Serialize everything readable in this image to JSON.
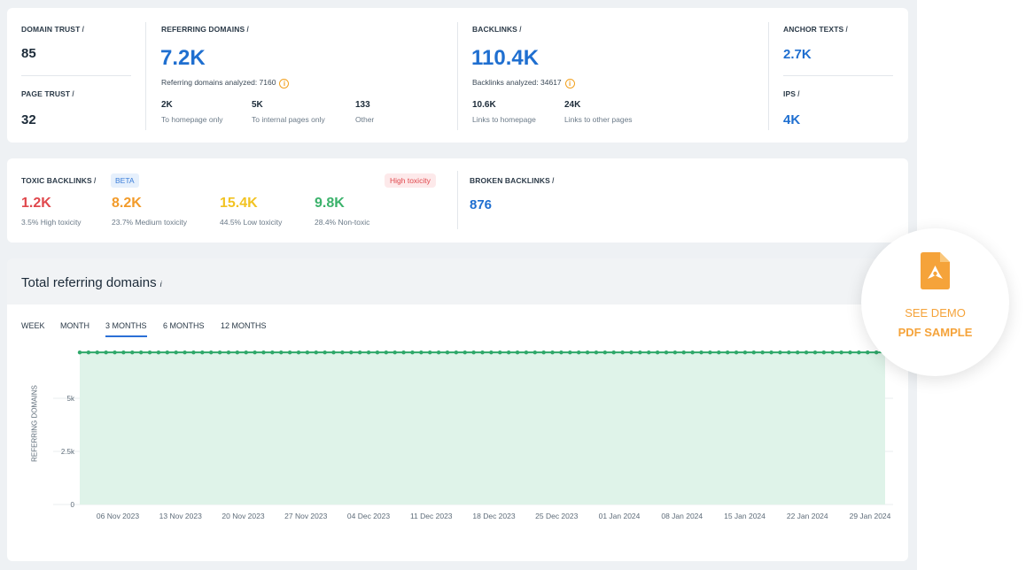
{
  "metrics": {
    "domain_trust": {
      "label": "DOMAIN TRUST",
      "value": "85"
    },
    "page_trust": {
      "label": "PAGE TRUST",
      "value": "32"
    },
    "referring_domains": {
      "label": "REFERRING DOMAINS",
      "value": "7.2K",
      "analyzed": "Referring domains analyzed: 7160",
      "breakdown": [
        {
          "value": "2K",
          "label": "To homepage only"
        },
        {
          "value": "5K",
          "label": "To internal pages only"
        },
        {
          "value": "133",
          "label": "Other"
        }
      ]
    },
    "backlinks": {
      "label": "BACKLINKS",
      "value": "110.4K",
      "analyzed": "Backlinks analyzed: 34617",
      "breakdown": [
        {
          "value": "10.6K",
          "label": "Links to homepage"
        },
        {
          "value": "24K",
          "label": "Links to other pages"
        }
      ]
    },
    "anchor_texts": {
      "label": "ANCHOR TEXTS",
      "value": "2.7K"
    },
    "ips": {
      "label": "IPS",
      "value": "4K"
    },
    "info_mark": "i"
  },
  "toxic": {
    "label": "TOXIC BACKLINKS",
    "beta": "BETA",
    "high_badge": "High toxicity",
    "items": [
      {
        "value": "1.2K",
        "label": "3.5% High toxicity",
        "color": "#e0484d"
      },
      {
        "value": "8.2K",
        "label": "23.7% Medium toxicity",
        "color": "#f29b2a"
      },
      {
        "value": "15.4K",
        "label": "44.5% Low toxicity",
        "color": "#f2c322"
      },
      {
        "value": "9.8K",
        "label": "28.4% Non-toxic",
        "color": "#3bb26b"
      }
    ]
  },
  "broken": {
    "label": "BROKEN BACKLINKS",
    "value": "876"
  },
  "chart_section": {
    "title": "Total referring domains",
    "tabs": [
      "WEEK",
      "MONTH",
      "3 MONTHS",
      "6 MONTHS",
      "12 MONTHS"
    ],
    "active_tab": "3 MONTHS"
  },
  "demo": {
    "line1": "SEE DEMO",
    "line2": "PDF SAMPLE"
  },
  "colors": {
    "blue_accent": "#1f6fd0",
    "chart_line": "#2fa86a",
    "chart_fill": "#dff3e9",
    "demo_orange": "#f5a33a"
  },
  "chart_data": {
    "type": "area",
    "ylabel": "REFERRING DOMAINS",
    "yticks": [
      "0",
      "2.5k",
      "5k"
    ],
    "ylim": [
      0,
      7500
    ],
    "xticks": [
      "06 Nov 2023",
      "13 Nov 2023",
      "20 Nov 2023",
      "27 Nov 2023",
      "04 Dec 2023",
      "11 Dec 2023",
      "18 Dec 2023",
      "25 Dec 2023",
      "01 Jan 2024",
      "08 Jan 2024",
      "15 Jan 2024",
      "22 Jan 2024",
      "29 Jan 2024"
    ],
    "series": [
      {
        "values_constant": 7160,
        "points": 93
      }
    ],
    "grid": true
  }
}
